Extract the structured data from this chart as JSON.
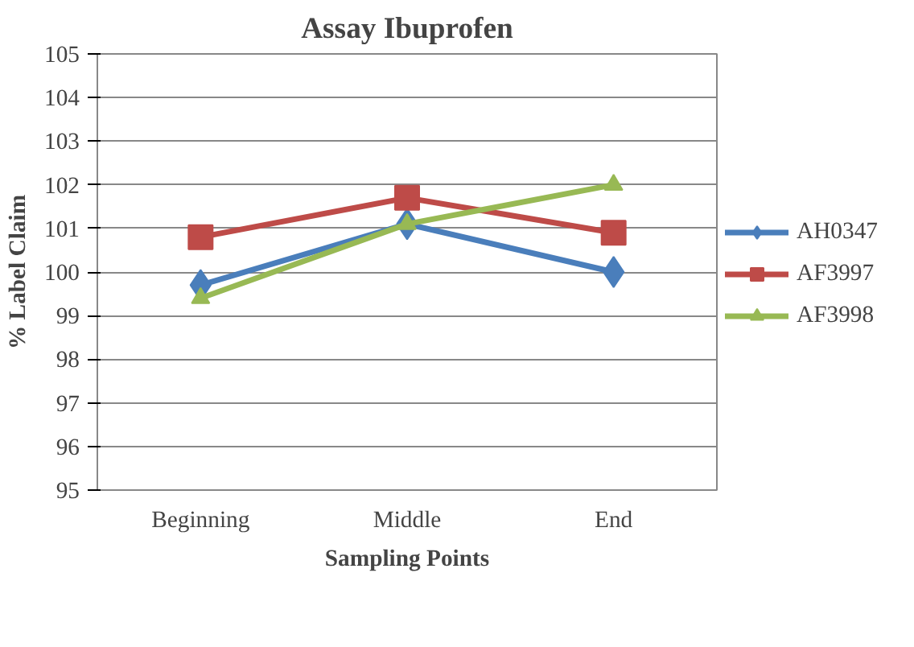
{
  "chart_data": {
    "type": "line",
    "title": "Assay Ibuprofen",
    "xlabel": "Sampling Points",
    "ylabel": "% Label Claim",
    "categories": [
      "Beginning",
      "Middle",
      "End"
    ],
    "series": [
      {
        "name": "AH0347",
        "color": "#4a7ebb",
        "values": [
          99.7,
          101.1,
          100.0
        ],
        "marker": "diamond"
      },
      {
        "name": "AF3997",
        "color": "#be4b48",
        "values": [
          100.8,
          101.7,
          100.9
        ],
        "marker": "square"
      },
      {
        "name": "AF3998",
        "color": "#98b954",
        "values": [
          99.4,
          101.1,
          102.0
        ],
        "marker": "triangle"
      }
    ],
    "ylim": [
      95,
      105
    ],
    "yticks": [
      95,
      96,
      97,
      98,
      99,
      100,
      101,
      102,
      103,
      104,
      105
    ],
    "grid": "y",
    "legend": "right",
    "line_style": "solid"
  }
}
